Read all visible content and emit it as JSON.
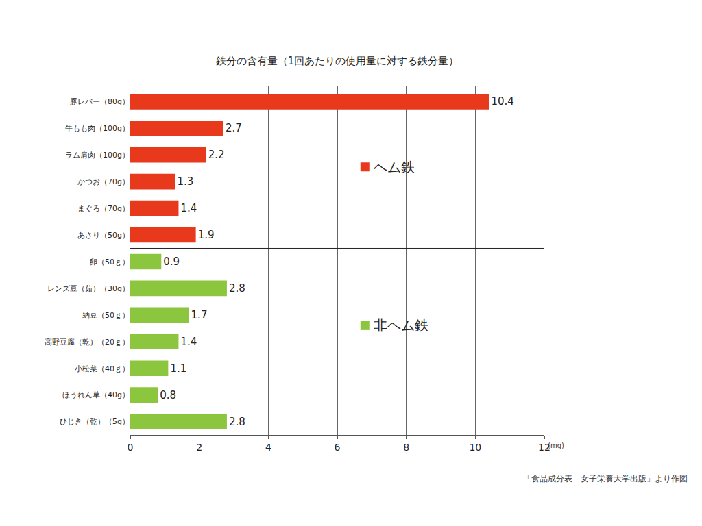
{
  "chart_data": {
    "type": "bar",
    "title": "鉄分の含有量（1回あたりの使用量に対する鉄分量）",
    "orientation": "horizontal",
    "categories": [
      "豚レバー（80g）",
      "牛もも肉（100g）",
      "ラム肩肉（100g）",
      "かつお（70g）",
      "まぐろ（70g）",
      "あさり（50g）",
      "卵（50ｇ）",
      "レンズ豆（茹）（30g）",
      "納豆（50ｇ）",
      "高野豆腐（乾）（20ｇ）",
      "小松菜（40ｇ）",
      "ほうれん草（40g）",
      "ひじき（乾）（5g）"
    ],
    "series": [
      {
        "name": "ヘム鉄",
        "color": "#e8391d",
        "values": [
          10.4,
          2.7,
          2.2,
          1.3,
          1.4,
          1.9,
          null,
          null,
          null,
          null,
          null,
          null,
          null
        ]
      },
      {
        "name": "非ヘム鉄",
        "color": "#8cc63f",
        "values": [
          null,
          null,
          null,
          null,
          null,
          null,
          0.9,
          2.8,
          1.7,
          1.4,
          1.1,
          0.8,
          2.8
        ]
      }
    ],
    "xlim": [
      0,
      12
    ],
    "xticks": [
      0,
      2,
      4,
      6,
      8,
      10,
      12
    ],
    "xlabel": "(mg)",
    "grid": true,
    "data_labels": true,
    "source": "「食品成分表　女子栄養大学出版」より作図"
  }
}
